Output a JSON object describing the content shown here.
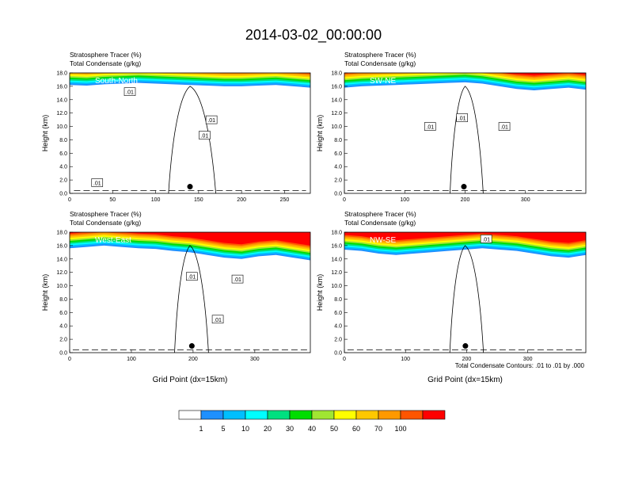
{
  "page_title": "2014-03-02_00:00:00",
  "footnote": "Total Condensate Contours: .01 to .01 by .000",
  "colorbar": {
    "labels": [
      "1",
      "5",
      "10",
      "20",
      "30",
      "40",
      "50",
      "60",
      "70",
      "100"
    ],
    "colors": [
      "#ffffff",
      "#1e90ff",
      "#00bfff",
      "#00ffff",
      "#00e080",
      "#00dd00",
      "#a0e632",
      "#ffff00",
      "#ffc800",
      "#ff9900",
      "#ff5500",
      "#ff0000"
    ]
  },
  "chart_data": [
    {
      "type": "heatmap",
      "title": "Stratosphere Tracer   (%)",
      "subtitle": "Total Condensate   (g/kg)",
      "panel_label": "South-North",
      "ylabel": "Height (km)",
      "xlabel": "",
      "xlim": [
        0,
        280
      ],
      "ylim": [
        0,
        18
      ],
      "xticks": [
        0,
        50,
        100,
        150,
        200,
        250
      ],
      "yticks": [
        "0.0",
        "2.0",
        "4.0",
        "6.0",
        "8.0",
        "10.0",
        "12.0",
        "14.0",
        "16.0",
        "18.0"
      ],
      "tracer_top_km": [
        16.2,
        16.1,
        16.3,
        16.4,
        16.5,
        16.4,
        16.3,
        16.2,
        16.1,
        16.0,
        16.0,
        16.1,
        16.2,
        16.0,
        15.8
      ],
      "marker": [
        140,
        1.0
      ],
      "contour_labels": [
        {
          "x": 32,
          "y": 1.6,
          "text": ".01"
        },
        {
          "x": 70,
          "y": 15.2,
          "text": ".01"
        },
        {
          "x": 157,
          "y": 8.7,
          "text": ".01"
        },
        {
          "x": 165,
          "y": 11.0,
          "text": ".01"
        }
      ]
    },
    {
      "type": "heatmap",
      "title": "Stratosphere Tracer   (%)",
      "subtitle": "Total Condensate   (g/kg)",
      "panel_label": "SW-NE",
      "ylabel": "Height (km)",
      "xlabel": "",
      "xlim": [
        0,
        400
      ],
      "ylim": [
        0,
        18
      ],
      "xticks": [
        0,
        100,
        200,
        300
      ],
      "yticks": [
        "0.0",
        "2.0",
        "4.0",
        "6.0",
        "8.0",
        "10.0",
        "12.0",
        "14.0",
        "16.0",
        "18.0"
      ],
      "tracer_top_km": [
        15.8,
        16.0,
        16.1,
        16.2,
        16.3,
        16.4,
        16.5,
        16.6,
        16.4,
        16.0,
        15.6,
        15.4,
        15.6,
        15.8,
        15.5
      ],
      "marker": [
        198,
        1.0
      ],
      "contour_labels": [
        {
          "x": 142,
          "y": 10.0,
          "text": ".01"
        },
        {
          "x": 195,
          "y": 11.3,
          "text": ".01"
        },
        {
          "x": 265,
          "y": 10.0,
          "text": ".01"
        }
      ]
    },
    {
      "type": "heatmap",
      "title": "Stratosphere Tracer   (%)",
      "subtitle": "Total Condensate   (g/kg)",
      "panel_label": "West-East",
      "ylabel": "Height (km)",
      "xlabel": "Grid Point (dx=15km)",
      "xlim": [
        0,
        390
      ],
      "ylim": [
        0,
        18
      ],
      "xticks": [
        0,
        100,
        200,
        300
      ],
      "yticks": [
        "0.0",
        "2.0",
        "4.0",
        "6.0",
        "8.0",
        "10.0",
        "12.0",
        "14.0",
        "16.0",
        "18.0"
      ],
      "tracer_top_km": [
        15.6,
        15.8,
        16.0,
        15.8,
        15.6,
        15.5,
        15.2,
        15.0,
        14.6,
        14.2,
        14.0,
        14.4,
        14.6,
        14.2,
        13.8
      ],
      "marker": [
        198,
        1.0
      ],
      "contour_labels": [
        {
          "x": 198,
          "y": 11.4,
          "text": ".01"
        },
        {
          "x": 272,
          "y": 11.0,
          "text": ".01"
        },
        {
          "x": 240,
          "y": 5.0,
          "text": ".01"
        }
      ]
    },
    {
      "type": "heatmap",
      "title": "Stratosphere Tracer   (%)",
      "subtitle": "Total Condensate   (g/kg)",
      "panel_label": "NW-SE",
      "ylabel": "Height (km)",
      "xlabel": "Grid Point (dx=15km)",
      "xlim": [
        0,
        395
      ],
      "ylim": [
        0,
        18
      ],
      "xticks": [
        0,
        100,
        200,
        300
      ],
      "yticks": [
        "0.0",
        "2.0",
        "4.0",
        "6.0",
        "8.0",
        "10.0",
        "12.0",
        "14.0",
        "16.0",
        "18.0"
      ],
      "tracer_top_km": [
        15.4,
        15.2,
        14.8,
        14.6,
        14.8,
        15.0,
        15.2,
        15.4,
        15.6,
        15.4,
        15.2,
        14.8,
        14.4,
        14.2,
        14.6
      ],
      "marker": [
        198,
        1.0
      ],
      "contour_labels": [
        {
          "x": 232,
          "y": 17.0,
          "text": ".01"
        }
      ]
    }
  ]
}
